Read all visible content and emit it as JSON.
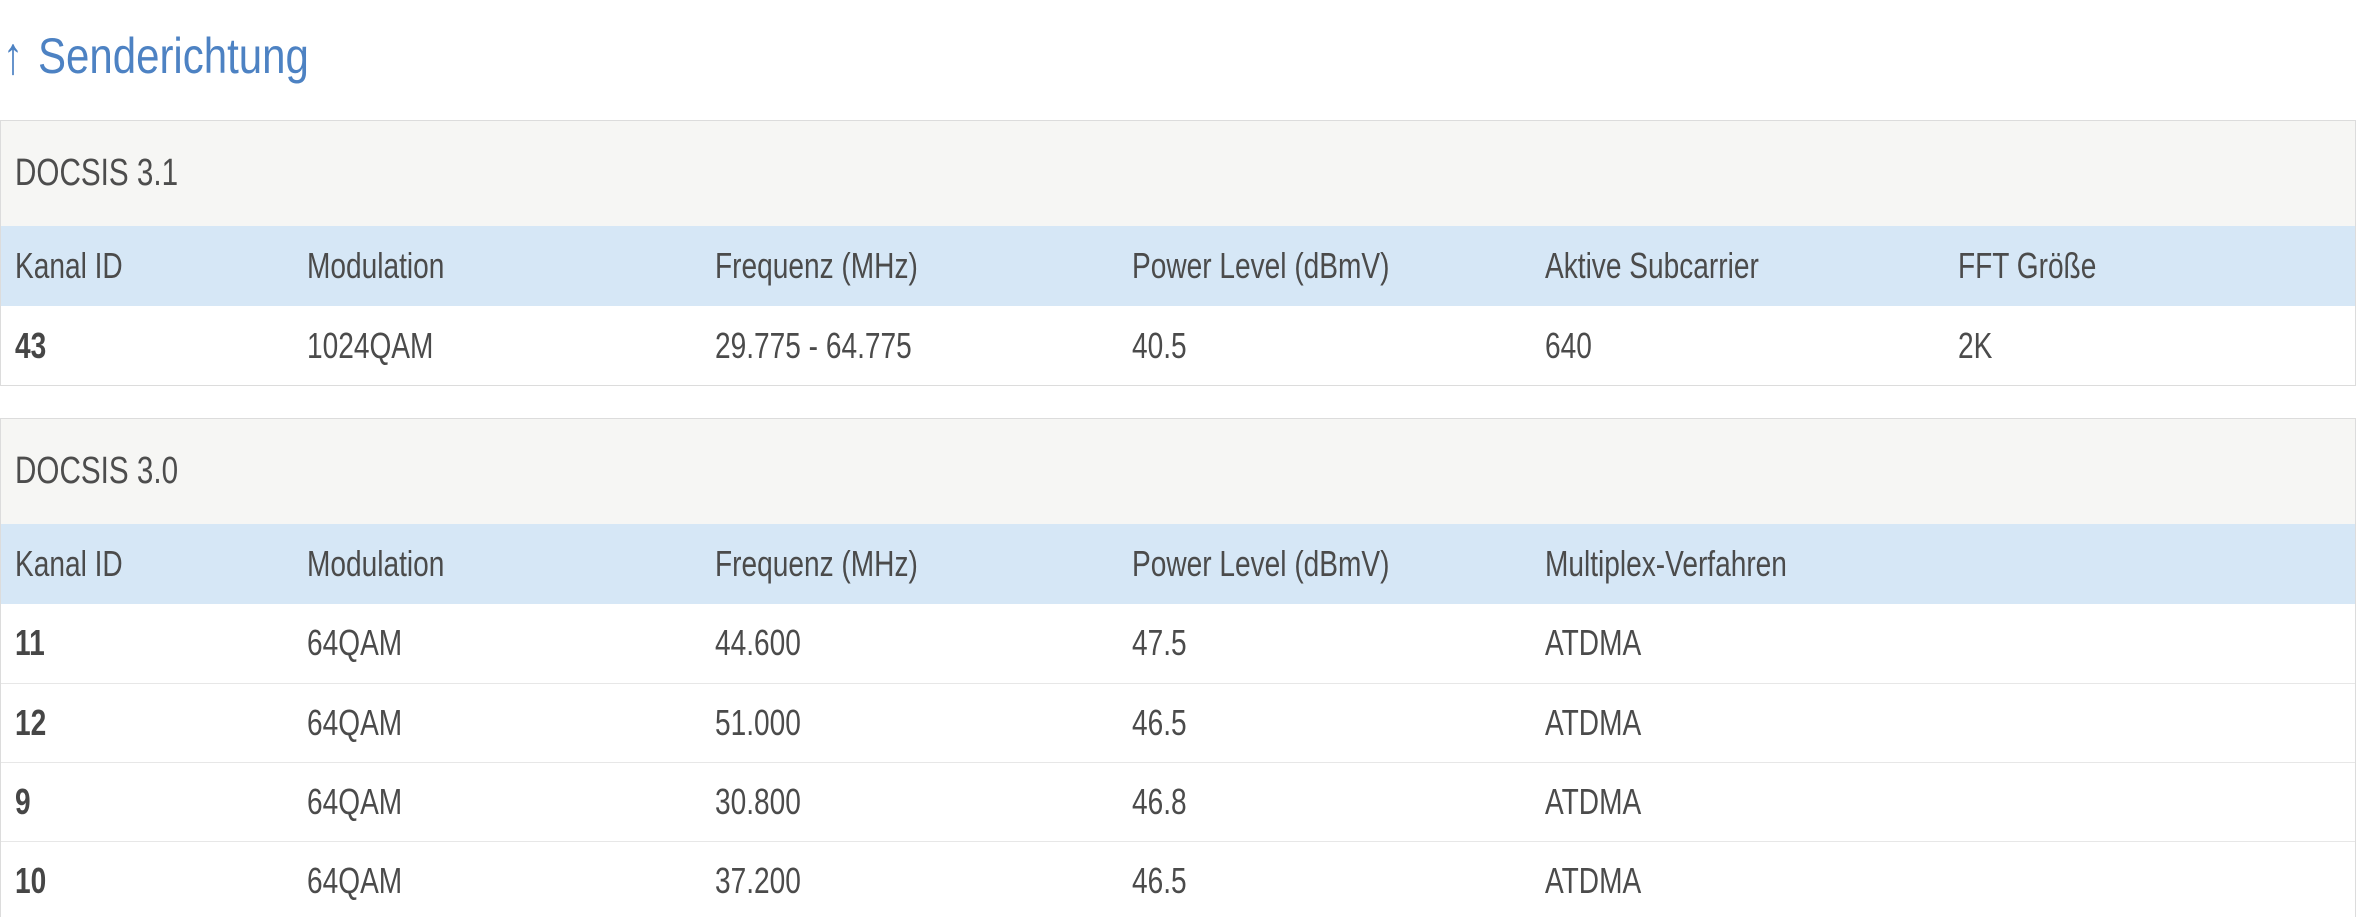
{
  "page": {
    "title": "Senderichtung",
    "title_arrow": "↑"
  },
  "colors": {
    "accent_blue": "#4d82c3",
    "table_header_bg": "#d6e7f6",
    "section_header_bg": "#f6f6f4",
    "text": "#4b4b4b",
    "card_border": "#dcdcdc",
    "row_divider": "#e7e7e7"
  },
  "tables": [
    {
      "section": "DOCSIS 3.1",
      "headers": [
        "Kanal ID",
        "Modulation",
        "Frequenz (MHz)",
        "Power Level (dBmV)",
        "Aktive Subcarrier",
        "FFT Größe"
      ],
      "rows": [
        [
          "43",
          "1024QAM",
          "29.775 - 64.775",
          "40.5",
          "640",
          "2K"
        ]
      ]
    },
    {
      "section": "DOCSIS 3.0",
      "headers": [
        "Kanal ID",
        "Modulation",
        "Frequenz (MHz)",
        "Power Level (dBmV)",
        "Multiplex-Verfahren",
        ""
      ],
      "rows": [
        [
          "11",
          "64QAM",
          "44.600",
          "47.5",
          "ATDMA",
          ""
        ],
        [
          "12",
          "64QAM",
          "51.000",
          "46.5",
          "ATDMA",
          ""
        ],
        [
          "9",
          "64QAM",
          "30.800",
          "46.8",
          "ATDMA",
          ""
        ],
        [
          "10",
          "64QAM",
          "37.200",
          "46.5",
          "ATDMA",
          ""
        ]
      ]
    }
  ]
}
